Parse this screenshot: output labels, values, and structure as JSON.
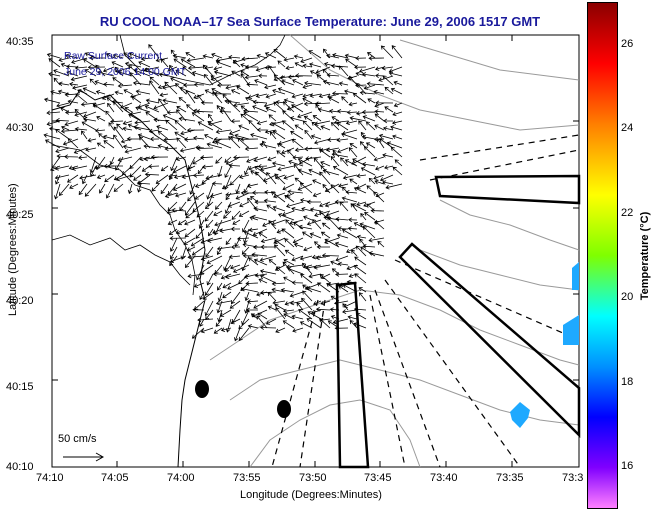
{
  "title": "RU COOL  NOAA–17  Sea Surface Temperature:  June 29, 2006 1517 GMT",
  "legend_line1": "Raw Surface Current",
  "legend_line2": "June 29, 2006 14:00 GMT",
  "scale_label": "50 cm/s",
  "xlabel": "Longitude (Degrees:Minutes)",
  "ylabel": "Latitude (Degrees:Minutes)",
  "x_ticks": [
    "74:10",
    "74:05",
    "74:00",
    "73:55",
    "73:50",
    "73:45",
    "73:40",
    "73:35",
    "73:3"
  ],
  "y_ticks": [
    "40:35",
    "40:30",
    "40:25",
    "40:20",
    "40:15",
    "40:10"
  ],
  "colorbar": {
    "label": "Temperature (°C)",
    "ticks": [
      "26",
      "24",
      "22",
      "20",
      "18",
      "16"
    ]
  },
  "colors": {
    "title": "#1a1a9c",
    "sst_patch": "#1ea9ff"
  }
}
